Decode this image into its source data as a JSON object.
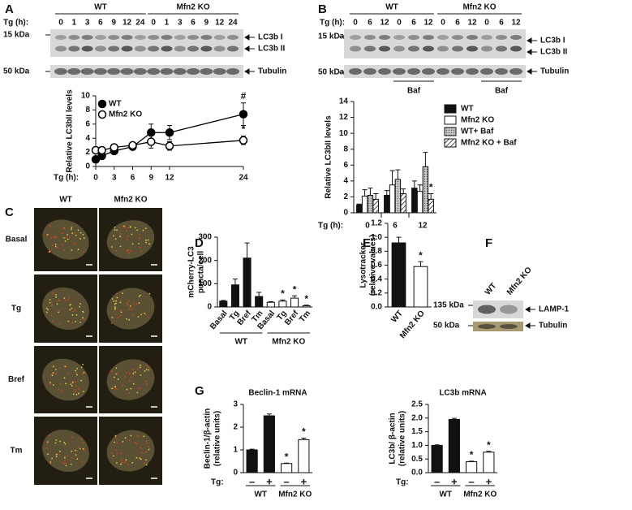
{
  "panel_letters": [
    "A",
    "B",
    "C",
    "D",
    "E",
    "F",
    "G"
  ],
  "blots": [
    {
      "groups": [
        "WT",
        "Mfn2 KO"
      ],
      "lane_label": "Tg (h):",
      "lanes": [
        0,
        1,
        3,
        6,
        9,
        12,
        24,
        0,
        1,
        3,
        6,
        9,
        12,
        24
      ],
      "markers": [
        "15 kDa",
        "50 kDa"
      ],
      "bands": [
        "LC3b I",
        "LC3b II",
        "Tubulin"
      ]
    },
    {
      "groups": [
        "WT",
        "Mfn2 KO"
      ],
      "lane_label": "Tg (h):",
      "lanes": [
        0,
        6,
        12,
        0,
        6,
        12,
        0,
        6,
        12,
        0,
        6,
        12
      ],
      "markers": [
        "15 kDa",
        "50 kDa"
      ],
      "bands": [
        "LC3b I",
        "LC3b II",
        "Tubulin"
      ],
      "treatments": [
        "Baf",
        "Baf"
      ]
    },
    {
      "lanes": [
        "WT",
        "Mfn2 KO"
      ],
      "markers": [
        "135 kDa",
        "50 kDa"
      ],
      "bands": [
        "LAMP-1",
        "Tubulin"
      ]
    }
  ],
  "micrographs": {
    "columns": [
      "WT",
      "Mfn2 KO"
    ],
    "rows": [
      "Basal",
      "Tg",
      "Bref",
      "Tm"
    ]
  },
  "chart_data": [
    {
      "type": "line",
      "y_label": [
        "Relative LC3bII levels"
      ],
      "x_label": "Tg (h):",
      "x": [
        0,
        1,
        3,
        6,
        9,
        12,
        24
      ],
      "xlim": [
        0,
        24
      ],
      "xticks": [
        0,
        3,
        6,
        9,
        12,
        24
      ],
      "ylim": [
        0,
        10
      ],
      "yticks": [
        0,
        2,
        4,
        6,
        8,
        10
      ],
      "series": [
        {
          "name": "WT",
          "color": "#000000",
          "marker": "filled",
          "values": [
            1.0,
            1.5,
            2.2,
            2.8,
            4.8,
            4.8,
            7.4
          ],
          "errors": [
            0.2,
            0.3,
            0.4,
            0.4,
            1.2,
            1.0,
            1.6
          ],
          "annotation": "#"
        },
        {
          "name": "Mfn2 KO",
          "color": "#000000",
          "marker": "open",
          "values": [
            2.3,
            2.3,
            2.7,
            3.0,
            3.5,
            2.9,
            3.7
          ],
          "errors": [
            0.3,
            0.3,
            0.3,
            0.3,
            0.9,
            0.6,
            0.6
          ],
          "annotation": "*"
        }
      ]
    },
    {
      "type": "bar",
      "y_label": [
        "Relative LC3bII levels"
      ],
      "x_label": "Tg (h):",
      "categories": [
        0,
        6,
        12
      ],
      "ylim": [
        0,
        14
      ],
      "yticks": [
        0,
        2,
        4,
        6,
        8,
        10,
        12,
        14
      ],
      "series": [
        {
          "name": "WT",
          "color": "#111111",
          "values": [
            1.0,
            2.2,
            3.1
          ],
          "errors": [
            0.1,
            0.6,
            0.9
          ]
        },
        {
          "name": "Mfn2 KO",
          "color": "#ffffff",
          "values": [
            2.1,
            3.5,
            2.7
          ],
          "errors": [
            0.8,
            1.8,
            0.8
          ]
        },
        {
          "name": "WT+ Baf",
          "color": "#c8c8c8",
          "pattern": "dots",
          "values": [
            2.2,
            4.2,
            5.8
          ],
          "errors": [
            0.9,
            1.2,
            1.8
          ]
        },
        {
          "name": "Mfn2 KO + Baf",
          "color": "#ffffff",
          "pattern": "hatch",
          "values": [
            1.7,
            2.4,
            1.7
          ],
          "errors": [
            0.7,
            0.6,
            0.7
          ],
          "value_annotations": [
            null,
            null,
            "*"
          ]
        }
      ]
    },
    {
      "type": "bar",
      "y_label": [
        "mCherry-LC3",
        "puncta/cell"
      ],
      "categories": [
        "Basal",
        "Tg",
        "Bref",
        "Tm",
        "Basal",
        "Tg",
        "Bref",
        "Tm"
      ],
      "group_labels": [
        "WT",
        "Mfn2 KO"
      ],
      "values": [
        25,
        95,
        210,
        45,
        20,
        25,
        38,
        5
      ],
      "errors": [
        3,
        25,
        65,
        18,
        3,
        5,
        10,
        3
      ],
      "colors": [
        "#111111",
        "#111111",
        "#111111",
        "#111111",
        "#ffffff",
        "#ffffff",
        "#ffffff",
        "#ffffff"
      ],
      "value_annotations": [
        null,
        null,
        null,
        null,
        null,
        "*",
        "*",
        "*"
      ],
      "ylim": [
        0,
        300
      ],
      "yticks": [
        0,
        100,
        200,
        300
      ]
    },
    {
      "type": "bar",
      "y_label": [
        "Lysotracker",
        "(relative values)"
      ],
      "categories": [
        "WT",
        "Mfn2 KO"
      ],
      "values": [
        0.92,
        0.58
      ],
      "errors": [
        0.08,
        0.07
      ],
      "colors": [
        "#111111",
        "#ffffff"
      ],
      "value_annotations": [
        null,
        "*"
      ],
      "ylim": [
        0,
        1.2
      ],
      "yticks": [
        {
          "value": 0,
          "label": "0.0"
        },
        0.2,
        0.4,
        0.6,
        0.8,
        {
          "value": 1,
          "label": "1.0"
        },
        1.2
      ]
    },
    {
      "type": "bar",
      "title": "Beclin-1 mRNA",
      "y_label": [
        "Beclin-1/β-actin",
        "(relative units)"
      ],
      "x_label": "Tg:",
      "categories": [
        "–",
        "+",
        "–",
        "+"
      ],
      "group_labels": [
        "WT",
        "Mfn2 KO"
      ],
      "values": [
        1.0,
        2.5,
        0.4,
        1.45
      ],
      "errors": [
        0.03,
        0.08,
        0.02,
        0.07
      ],
      "colors": [
        "#111111",
        "#111111",
        "#ffffff",
        "#ffffff"
      ],
      "value_annotations": [
        null,
        null,
        "*",
        "*"
      ],
      "ylim": [
        0,
        3
      ],
      "yticks": [
        0,
        1,
        2,
        3
      ]
    },
    {
      "type": "bar",
      "title": "LC3b mRNA",
      "y_label": [
        "LC3b/ β-actin",
        "(relative units)"
      ],
      "x_label": "Tg:",
      "categories": [
        "–",
        "+",
        "–",
        "+"
      ],
      "group_labels": [
        "WT",
        "Mfn2 KO"
      ],
      "values": [
        1.0,
        1.95,
        0.4,
        0.75
      ],
      "errors": [
        0.02,
        0.04,
        0.02,
        0.03
      ],
      "colors": [
        "#111111",
        "#111111",
        "#ffffff",
        "#ffffff"
      ],
      "value_annotations": [
        null,
        null,
        "*",
        "*"
      ],
      "ylim": [
        0,
        2.5
      ],
      "yticks": [
        {
          "value": 0,
          "label": "0.0"
        },
        0.5,
        {
          "value": 1,
          "label": "1.0"
        },
        1.5,
        {
          "value": 2,
          "label": "2.0"
        },
        2.5
      ]
    }
  ]
}
